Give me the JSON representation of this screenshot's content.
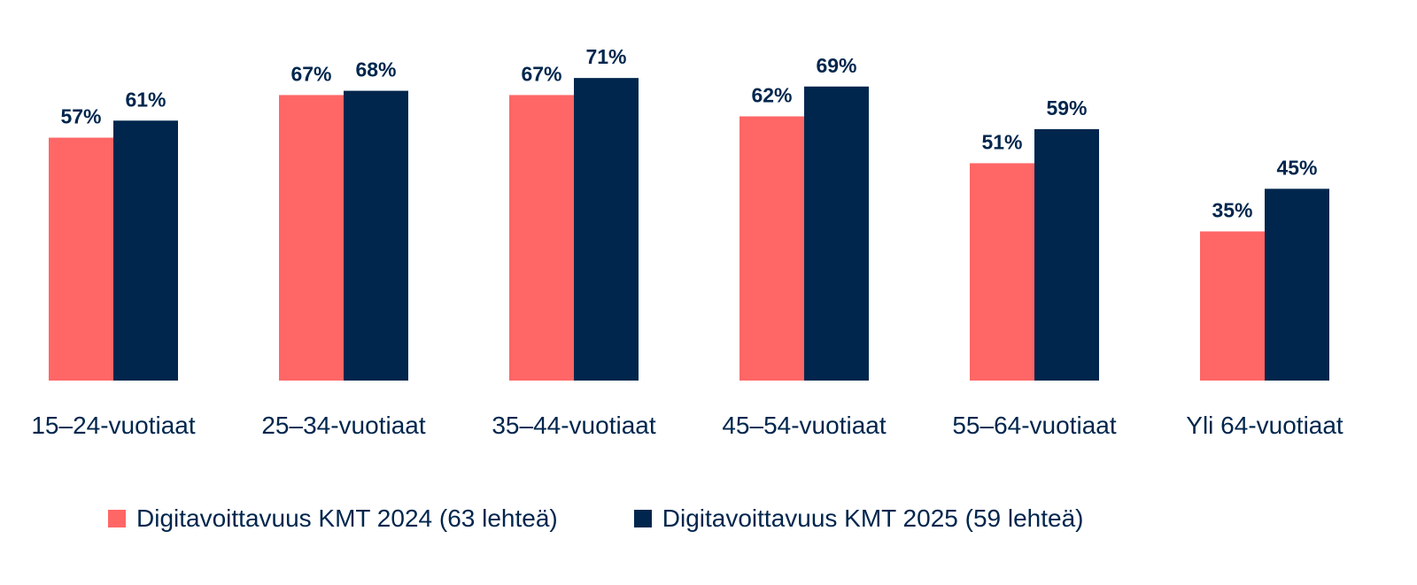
{
  "chart_data": {
    "type": "bar",
    "categories": [
      "15–24-vuotiaat",
      "25–34-vuotiaat",
      "35–44-vuotiaat",
      "45–54-vuotiaat",
      "55–64-vuotiaat",
      "Yli 64-vuotiaat"
    ],
    "series": [
      {
        "name": "Digitavoittavuus KMT 2024 (63 lehteä)",
        "values": [
          57,
          67,
          67,
          62,
          51,
          35
        ],
        "labels": [
          "57%",
          "67%",
          "67%",
          "62%",
          "51%",
          "35%"
        ],
        "color": "#ff6666"
      },
      {
        "name": "Digitavoittavuus KMT 2025 (59 lehteä)",
        "values": [
          61,
          68,
          71,
          69,
          59,
          45
        ],
        "labels": [
          "61%",
          "68%",
          "71%",
          "69%",
          "59%",
          "45%"
        ],
        "color": "#00264d"
      }
    ],
    "ylim": [
      0,
      90
    ],
    "grid": false,
    "legend_position": "bottom",
    "text_color": "#00264d"
  }
}
